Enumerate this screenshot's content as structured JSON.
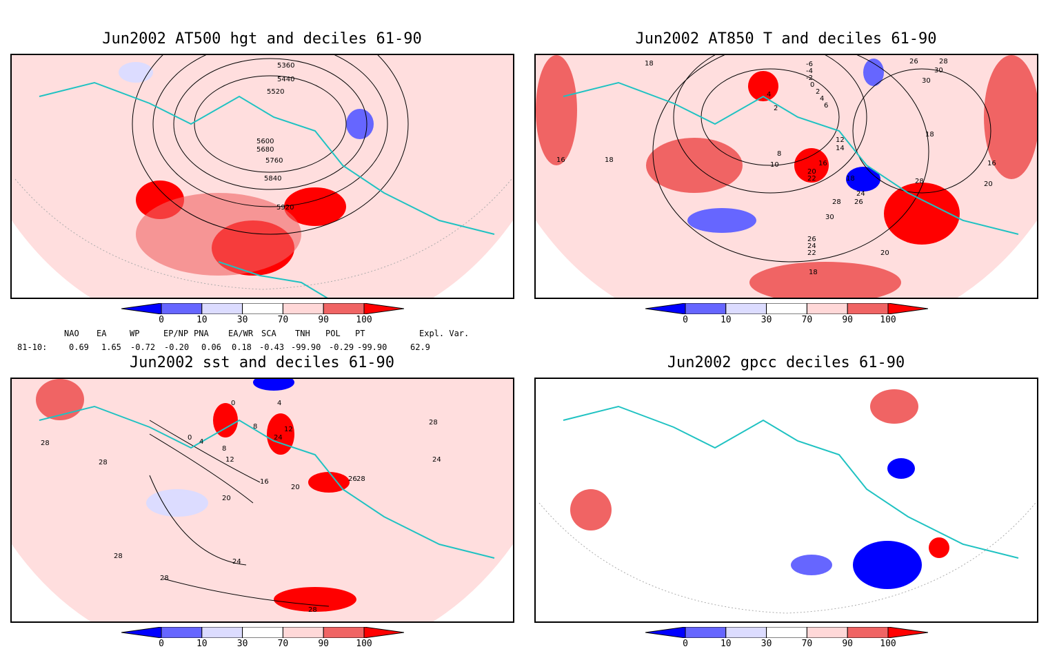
{
  "panels": [
    {
      "id": "p1",
      "title": "Jun2002 AT500 hgt and deciles 61-90",
      "contour_labels": [
        "5360",
        "5440",
        "5520",
        "5600",
        "5680",
        "5760",
        "5840",
        "5920"
      ]
    },
    {
      "id": "p2",
      "title": "Jun2002 AT850 T and deciles 61-90",
      "contour_labels": [
        "18",
        "16",
        "18",
        "-6",
        "-4",
        "-2",
        "0",
        "2",
        "4",
        "6",
        "4",
        "2",
        "8",
        "10",
        "12",
        "14",
        "16",
        "20",
        "22",
        "18",
        "24",
        "26",
        "28",
        "30",
        "26",
        "24",
        "22",
        "20",
        "18",
        "28",
        "30",
        "26",
        "28",
        "30",
        "18",
        "16",
        "20"
      ]
    },
    {
      "id": "p3",
      "title": "Jun2002 sst and deciles 61-90",
      "contour_labels": [
        "28",
        "28",
        "0",
        "4",
        "8",
        "12",
        "16",
        "20",
        "24",
        "28",
        "28",
        "28",
        "28",
        "24",
        "28",
        "0",
        "4",
        "8",
        "12",
        "20",
        "24",
        "26"
      ]
    },
    {
      "id": "p4",
      "title": "Jun2002 gpcc deciles 61-90",
      "contour_labels": []
    }
  ],
  "colorbar": {
    "labels": [
      "0",
      "10",
      "30",
      "70",
      "90",
      "100"
    ],
    "colors": [
      "#0000ff",
      "#6666ff",
      "#dcdcff",
      "#ffffff",
      "#ffd8d8",
      "#f06464",
      "#ff0000"
    ]
  },
  "indices": {
    "headers": [
      "NAO",
      "EA",
      "WP",
      "EP/NP",
      "PNA",
      "EA/WR",
      "SCA",
      "TNH",
      "POL",
      "PT",
      "Expl. Var."
    ],
    "row_label": "81-10:",
    "values": [
      "0.69",
      "1.65",
      "-0.72",
      "-0.20",
      "0.06",
      "0.18",
      "-0.43",
      "-99.90",
      "-0.29",
      "-99.90",
      "62.9"
    ]
  },
  "colors": {
    "coast": "#1fc2c2",
    "grid": "#9a9a9a",
    "contour": "#000000"
  }
}
